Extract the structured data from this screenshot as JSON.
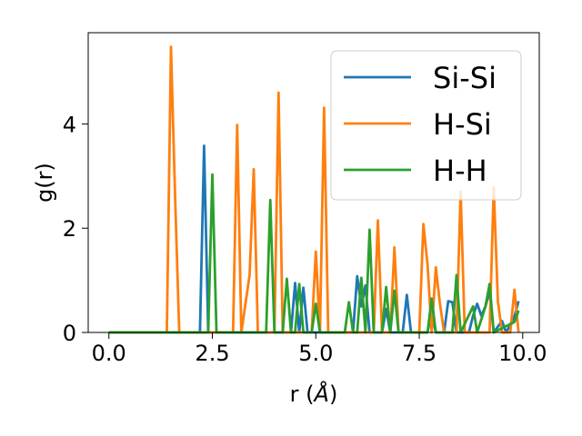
{
  "chart_data": {
    "type": "line",
    "xlabel": "r (",
    "xlabel_unit": "Å",
    "xlabel_close": ")",
    "ylabel": "g(r)",
    "xlim": [
      -0.5,
      10.4
    ],
    "ylim": [
      0,
      5.75
    ],
    "xticks": [
      0.0,
      2.5,
      5.0,
      7.5,
      10.0
    ],
    "xtick_labels": [
      "0.0",
      "2.5",
      "5.0",
      "7.5",
      "10.0"
    ],
    "yticks": [
      0,
      2,
      4
    ],
    "ytick_labels": [
      "0",
      "2",
      "4"
    ],
    "grid": false,
    "legend_position": "top-right",
    "series": [
      {
        "name": "Si-Si",
        "color": "#1f77b4",
        "points": [
          [
            0,
            0
          ],
          [
            2.2,
            0
          ],
          [
            2.3,
            3.58
          ],
          [
            2.4,
            0
          ],
          [
            4.4,
            0
          ],
          [
            4.5,
            0.95
          ],
          [
            4.6,
            0
          ],
          [
            4.7,
            0.86
          ],
          [
            4.8,
            0
          ],
          [
            5.0,
            0
          ],
          [
            5.9,
            0
          ],
          [
            6.0,
            1.08
          ],
          [
            6.1,
            0.5
          ],
          [
            6.2,
            0.9
          ],
          [
            6.3,
            0
          ],
          [
            6.6,
            0
          ],
          [
            6.7,
            0.45
          ],
          [
            6.8,
            0
          ],
          [
            7.1,
            0
          ],
          [
            7.2,
            0.72
          ],
          [
            7.3,
            0
          ],
          [
            7.7,
            0
          ],
          [
            7.8,
            0.4
          ],
          [
            7.9,
            0
          ],
          [
            8.1,
            0
          ],
          [
            8.2,
            0.6
          ],
          [
            8.3,
            0.58
          ],
          [
            8.4,
            0
          ],
          [
            8.7,
            0
          ],
          [
            8.8,
            0.32
          ],
          [
            8.9,
            0.55
          ],
          [
            9.0,
            0.32
          ],
          [
            9.1,
            0.5
          ],
          [
            9.2,
            0.78
          ],
          [
            9.3,
            0
          ],
          [
            9.5,
            0.22
          ],
          [
            9.6,
            0
          ],
          [
            9.8,
            0.3
          ],
          [
            9.9,
            0.6
          ]
        ]
      },
      {
        "name": "H-Si",
        "color": "#ff7f0e",
        "points": [
          [
            0,
            0
          ],
          [
            1.4,
            0
          ],
          [
            1.5,
            5.48
          ],
          [
            1.6,
            2.6
          ],
          [
            1.7,
            0
          ],
          [
            3.0,
            0
          ],
          [
            3.1,
            3.98
          ],
          [
            3.2,
            0
          ],
          [
            3.4,
            1.1
          ],
          [
            3.5,
            3.13
          ],
          [
            3.6,
            0
          ],
          [
            4.0,
            0
          ],
          [
            4.1,
            4.6
          ],
          [
            4.2,
            0
          ],
          [
            4.9,
            0
          ],
          [
            5.0,
            1.55
          ],
          [
            5.1,
            0
          ],
          [
            5.2,
            4.31
          ],
          [
            5.3,
            0
          ],
          [
            6.4,
            0
          ],
          [
            6.5,
            2.15
          ],
          [
            6.6,
            0
          ],
          [
            6.8,
            0
          ],
          [
            6.9,
            1.63
          ],
          [
            7.0,
            0
          ],
          [
            7.5,
            0
          ],
          [
            7.6,
            2.08
          ],
          [
            7.7,
            1.3
          ],
          [
            7.8,
            0
          ],
          [
            7.9,
            1.25
          ],
          [
            8.0,
            0.55
          ],
          [
            8.1,
            0
          ],
          [
            8.4,
            0
          ],
          [
            8.5,
            2.7
          ],
          [
            8.6,
            0
          ],
          [
            9.2,
            0
          ],
          [
            9.3,
            2.78
          ],
          [
            9.4,
            0.6
          ],
          [
            9.5,
            0
          ],
          [
            9.7,
            0
          ],
          [
            9.8,
            0.82
          ],
          [
            9.9,
            0
          ]
        ]
      },
      {
        "name": "H-H",
        "color": "#2ca02c",
        "points": [
          [
            0,
            0
          ],
          [
            2.4,
            0
          ],
          [
            2.5,
            3.03
          ],
          [
            2.6,
            0
          ],
          [
            3.8,
            0
          ],
          [
            3.9,
            2.54
          ],
          [
            4.0,
            0
          ],
          [
            4.2,
            0
          ],
          [
            4.3,
            1.03
          ],
          [
            4.4,
            0
          ],
          [
            4.5,
            0
          ],
          [
            4.6,
            0.93
          ],
          [
            4.7,
            0
          ],
          [
            4.9,
            0
          ],
          [
            5.0,
            0.55
          ],
          [
            5.1,
            0
          ],
          [
            5.7,
            0
          ],
          [
            5.8,
            0.58
          ],
          [
            5.9,
            0
          ],
          [
            6.0,
            0
          ],
          [
            6.1,
            1.05
          ],
          [
            6.2,
            0
          ],
          [
            6.3,
            1.97
          ],
          [
            6.4,
            0
          ],
          [
            6.6,
            0
          ],
          [
            6.7,
            0.87
          ],
          [
            6.8,
            0
          ],
          [
            6.9,
            0.8
          ],
          [
            7.0,
            0
          ],
          [
            7.7,
            0
          ],
          [
            7.8,
            0.65
          ],
          [
            7.9,
            0
          ],
          [
            8.3,
            0
          ],
          [
            8.4,
            1.1
          ],
          [
            8.5,
            0
          ],
          [
            8.8,
            0.5
          ],
          [
            8.9,
            0
          ],
          [
            9.1,
            0.5
          ],
          [
            9.2,
            0.93
          ],
          [
            9.3,
            0
          ],
          [
            9.8,
            0.2
          ],
          [
            9.9,
            0.42
          ]
        ]
      }
    ]
  }
}
